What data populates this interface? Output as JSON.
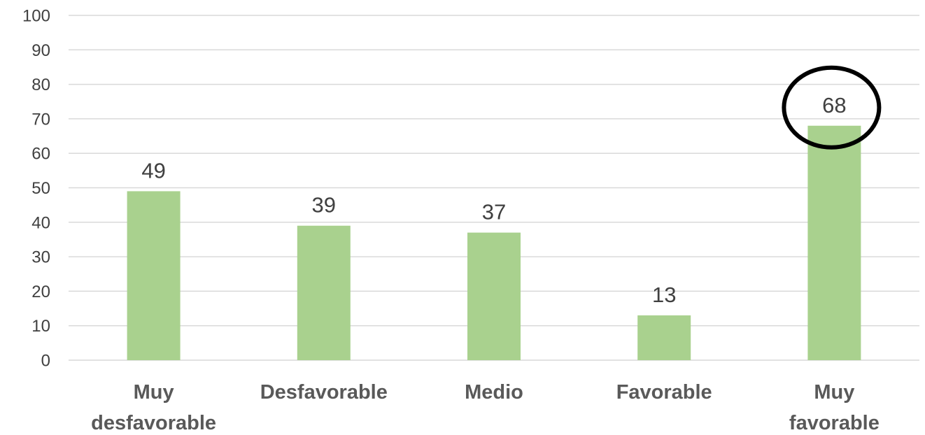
{
  "chart_data": {
    "type": "bar",
    "categories": [
      [
        "Muy",
        "desfavorable"
      ],
      [
        "Desfavorable"
      ],
      [
        "Medio"
      ],
      [
        "Favorable"
      ],
      [
        "Muy",
        "favorable"
      ]
    ],
    "values": [
      49,
      39,
      37,
      13,
      68
    ],
    "data_labels": [
      "49",
      "39",
      "37",
      "13",
      "68"
    ],
    "title": "",
    "xlabel": "",
    "ylabel": "",
    "ylim": [
      0,
      100
    ],
    "yticks": [
      0,
      10,
      20,
      30,
      40,
      50,
      60,
      70,
      80,
      90,
      100
    ],
    "grid": true,
    "legend": "none",
    "bar_color": "#a9d18e",
    "highlighted_category_index": 4
  }
}
